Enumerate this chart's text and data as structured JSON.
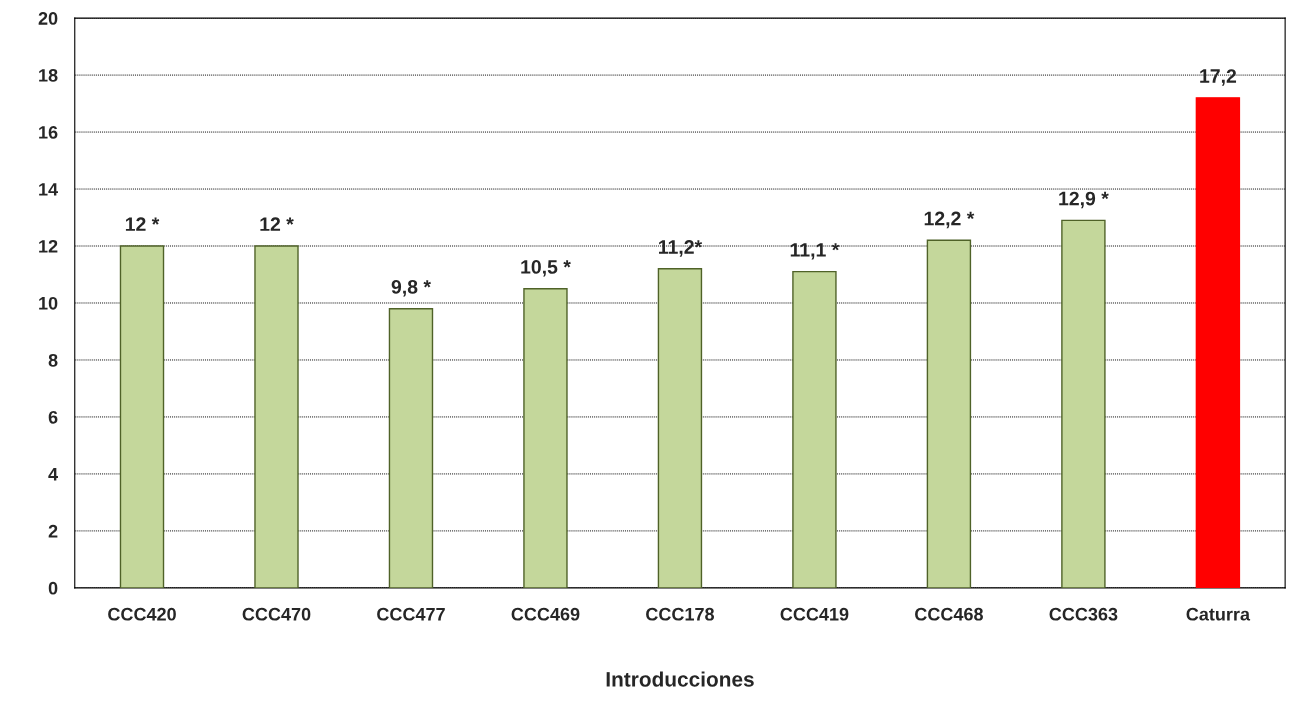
{
  "chart_data": {
    "type": "bar",
    "xlabel": "Introducciones",
    "categories": [
      "CCC420",
      "CCC470",
      "CCC477",
      "CCC469",
      "CCC178",
      "CCC419",
      "CCC468",
      "CCC363",
      "Caturra"
    ],
    "values": [
      12,
      12,
      9.8,
      10.5,
      11.2,
      11.1,
      12.2,
      12.9,
      17.2
    ],
    "colors": [
      "#c4d79b",
      "#c4d79b",
      "#c4d79b",
      "#c4d79b",
      "#c4d79b",
      "#c4d79b",
      "#c4d79b",
      "#c4d79b",
      "#ff0000"
    ],
    "value_labels": [
      "12 *",
      "12 *",
      "9,8 *",
      "10,5 *",
      "11,2*",
      "11,1 *",
      "12,2 *",
      "12,9 *",
      "17,2"
    ],
    "ylim": [
      0,
      20
    ],
    "yticks": [
      0,
      2,
      4,
      6,
      8,
      10,
      12,
      14,
      16,
      18,
      20
    ],
    "grid": "y"
  }
}
